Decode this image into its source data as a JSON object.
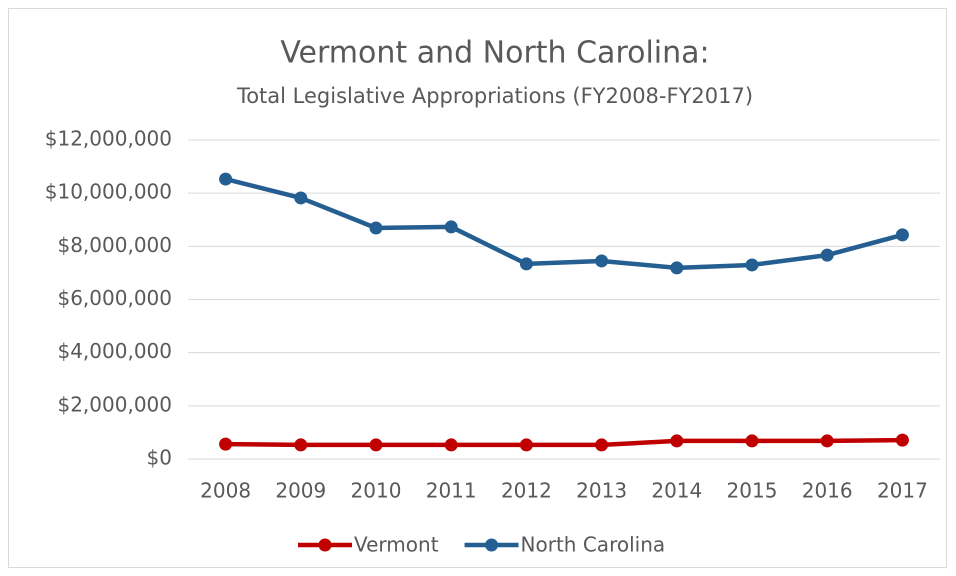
{
  "chart_data": {
    "type": "line",
    "title": "Vermont and North Carolina:",
    "subtitle": "Total Legislative Appropriations (FY2008-FY2017)",
    "categories": [
      "2008",
      "2009",
      "2010",
      "2011",
      "2012",
      "2013",
      "2014",
      "2015",
      "2016",
      "2017"
    ],
    "series": [
      {
        "name": "Vermont",
        "color": "#c00000",
        "values": [
          560000,
          530000,
          530000,
          530000,
          530000,
          530000,
          680000,
          680000,
          680000,
          710000
        ]
      },
      {
        "name": "North Carolina",
        "color": "#255e91",
        "values": [
          10530000,
          9820000,
          8690000,
          8730000,
          7340000,
          7450000,
          7190000,
          7300000,
          7670000,
          8430000
        ]
      }
    ],
    "ylim": [
      0,
      12000000
    ],
    "yticks": [
      {
        "value": 0,
        "label": "$0"
      },
      {
        "value": 2000000,
        "label": "$2,000,000"
      },
      {
        "value": 4000000,
        "label": "$4,000,000"
      },
      {
        "value": 6000000,
        "label": "$6,000,000"
      },
      {
        "value": 8000000,
        "label": "$8,000,000"
      },
      {
        "value": 10000000,
        "label": "$10,000,000"
      },
      {
        "value": 12000000,
        "label": "$12,000,000"
      }
    ],
    "grid": true,
    "legend": "bottom"
  }
}
